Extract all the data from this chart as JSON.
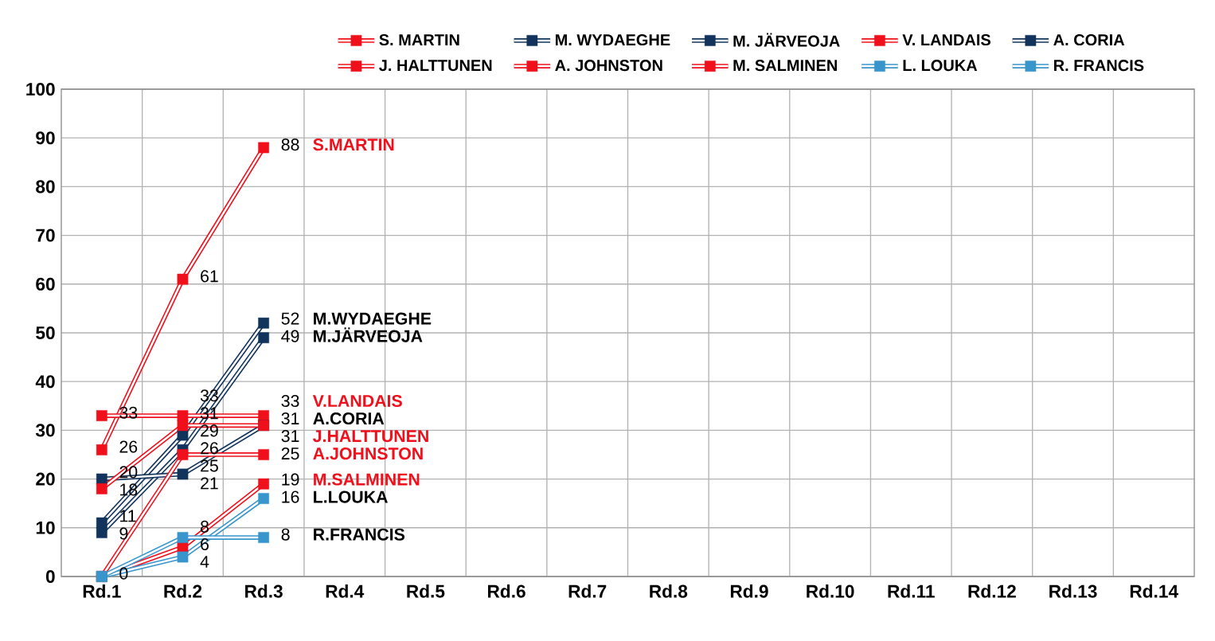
{
  "chart_data": {
    "type": "line",
    "categories": [
      "Rd.1",
      "Rd.2",
      "Rd.3",
      "Rd.4",
      "Rd.5",
      "Rd.6",
      "Rd.7",
      "Rd.8",
      "Rd.9",
      "Rd.10",
      "Rd.11",
      "Rd.12",
      "Rd.13",
      "Rd.14"
    ],
    "series": [
      {
        "name": "S. MARTIN",
        "color": "#f0101c",
        "values": [
          26,
          61,
          88,
          null,
          null,
          null,
          null,
          null,
          null,
          null,
          null,
          null,
          null,
          null
        ],
        "value_labels": [
          "26",
          "61",
          "88",
          null,
          null,
          null,
          null,
          null,
          null,
          null,
          null,
          null,
          null,
          null
        ]
      },
      {
        "name": "M. WYDAEGHE",
        "color": "#12345c",
        "values": [
          11,
          29,
          52,
          null,
          null,
          null,
          null,
          null,
          null,
          null,
          null,
          null,
          null,
          null
        ],
        "value_labels": [
          "11",
          "29",
          "52",
          null,
          null,
          null,
          null,
          null,
          null,
          null,
          null,
          null,
          null,
          null
        ]
      },
      {
        "name": "M. JÄRVEOJA",
        "color": "#12345c",
        "values": [
          9,
          26,
          49,
          null,
          null,
          null,
          null,
          null,
          null,
          null,
          null,
          null,
          null,
          null
        ],
        "value_labels": [
          "9",
          "26",
          "49",
          null,
          null,
          null,
          null,
          null,
          null,
          null,
          null,
          null,
          null,
          null
        ]
      },
      {
        "name": "V. LANDAIS",
        "color": "#f0101c",
        "values": [
          33,
          33,
          33,
          null,
          null,
          null,
          null,
          null,
          null,
          null,
          null,
          null,
          null,
          null
        ],
        "value_labels": [
          "33",
          "33",
          "33",
          null,
          null,
          null,
          null,
          null,
          null,
          null,
          null,
          null,
          null,
          null
        ]
      },
      {
        "name": "A. CORIA",
        "color": "#12345c",
        "values": [
          20,
          21,
          31,
          null,
          null,
          null,
          null,
          null,
          null,
          null,
          null,
          null,
          null,
          null
        ],
        "value_labels": [
          "20",
          "21",
          "31",
          null,
          null,
          null,
          null,
          null,
          null,
          null,
          null,
          null,
          null,
          null
        ]
      },
      {
        "name": "J. HALTTUNEN",
        "color": "#f0101c",
        "values": [
          18,
          31,
          31,
          null,
          null,
          null,
          null,
          null,
          null,
          null,
          null,
          null,
          null,
          null
        ],
        "value_labels": [
          "18",
          "31",
          "31",
          null,
          null,
          null,
          null,
          null,
          null,
          null,
          null,
          null,
          null,
          null
        ]
      },
      {
        "name": "A. JOHNSTON",
        "color": "#f0101c",
        "values": [
          0,
          25,
          25,
          null,
          null,
          null,
          null,
          null,
          null,
          null,
          null,
          null,
          null,
          null
        ],
        "value_labels": [
          null,
          "25",
          "25",
          null,
          null,
          null,
          null,
          null,
          null,
          null,
          null,
          null,
          null,
          null
        ]
      },
      {
        "name": "M. SALMINEN",
        "color": "#f0101c",
        "values": [
          0,
          6,
          19,
          null,
          null,
          null,
          null,
          null,
          null,
          null,
          null,
          null,
          null,
          null
        ],
        "value_labels": [
          null,
          "6",
          "19",
          null,
          null,
          null,
          null,
          null,
          null,
          null,
          null,
          null,
          null,
          null
        ]
      },
      {
        "name": "L. LOUKA",
        "color": "#3896cc",
        "values": [
          0,
          4,
          16,
          null,
          null,
          null,
          null,
          null,
          null,
          null,
          null,
          null,
          null,
          null
        ],
        "value_labels": [
          "0",
          "4",
          "16",
          null,
          null,
          null,
          null,
          null,
          null,
          null,
          null,
          null,
          null,
          null
        ]
      },
      {
        "name": "R. FRANCIS",
        "color": "#3896cc",
        "values": [
          0,
          8,
          8,
          null,
          null,
          null,
          null,
          null,
          null,
          null,
          null,
          null,
          null,
          null
        ],
        "value_labels": [
          null,
          "8",
          "8",
          null,
          null,
          null,
          null,
          null,
          null,
          null,
          null,
          null,
          null,
          null
        ]
      }
    ],
    "ylim": [
      0,
      100
    ],
    "yticks": [
      0,
      10,
      20,
      30,
      40,
      50,
      60,
      70,
      80,
      90,
      100
    ],
    "grid": true,
    "legend": "top",
    "marker": "square",
    "line_style": "solid",
    "annotations": [
      "S.MARTIN",
      "M.WYDAEGHE",
      "M.JÄRVEOJA",
      "V.LANDAIS",
      "A.CORIA",
      "J.HALTTUNEN",
      "A.JOHNSTON",
      "M.SALMINEN",
      "L.LOUKA",
      "R.FRANCIS"
    ]
  }
}
